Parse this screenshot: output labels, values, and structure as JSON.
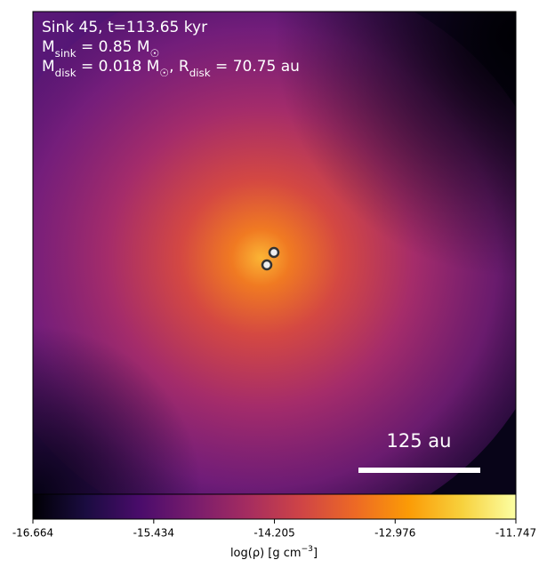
{
  "chart_data": {
    "type": "density-map",
    "annotations": [
      [
        {
          "text": "Sink 45, t=113.65 kyr"
        }
      ],
      [
        {
          "text": "M"
        },
        {
          "sub": "sink"
        },
        {
          "text": " = 0.85 M"
        },
        {
          "sub": "☉"
        }
      ],
      [
        {
          "text": "M"
        },
        {
          "sub": "disk"
        },
        {
          "text": " = 0.018 M"
        },
        {
          "sub": "☉"
        },
        {
          "text": ", R"
        },
        {
          "sub": "disk"
        },
        {
          "text": " = 70.75 au"
        }
      ]
    ],
    "scale_bar_label": "125 au",
    "colormap": "inferno",
    "clim": [
      -16.664,
      -11.747
    ],
    "cticks": [
      -16.664,
      -15.434,
      -14.205,
      -12.976,
      -11.747
    ],
    "colorbar_label": [
      {
        "text": "log(ρ) [g cm"
      },
      {
        "sup": "−3"
      },
      {
        "text": "]"
      }
    ]
  }
}
